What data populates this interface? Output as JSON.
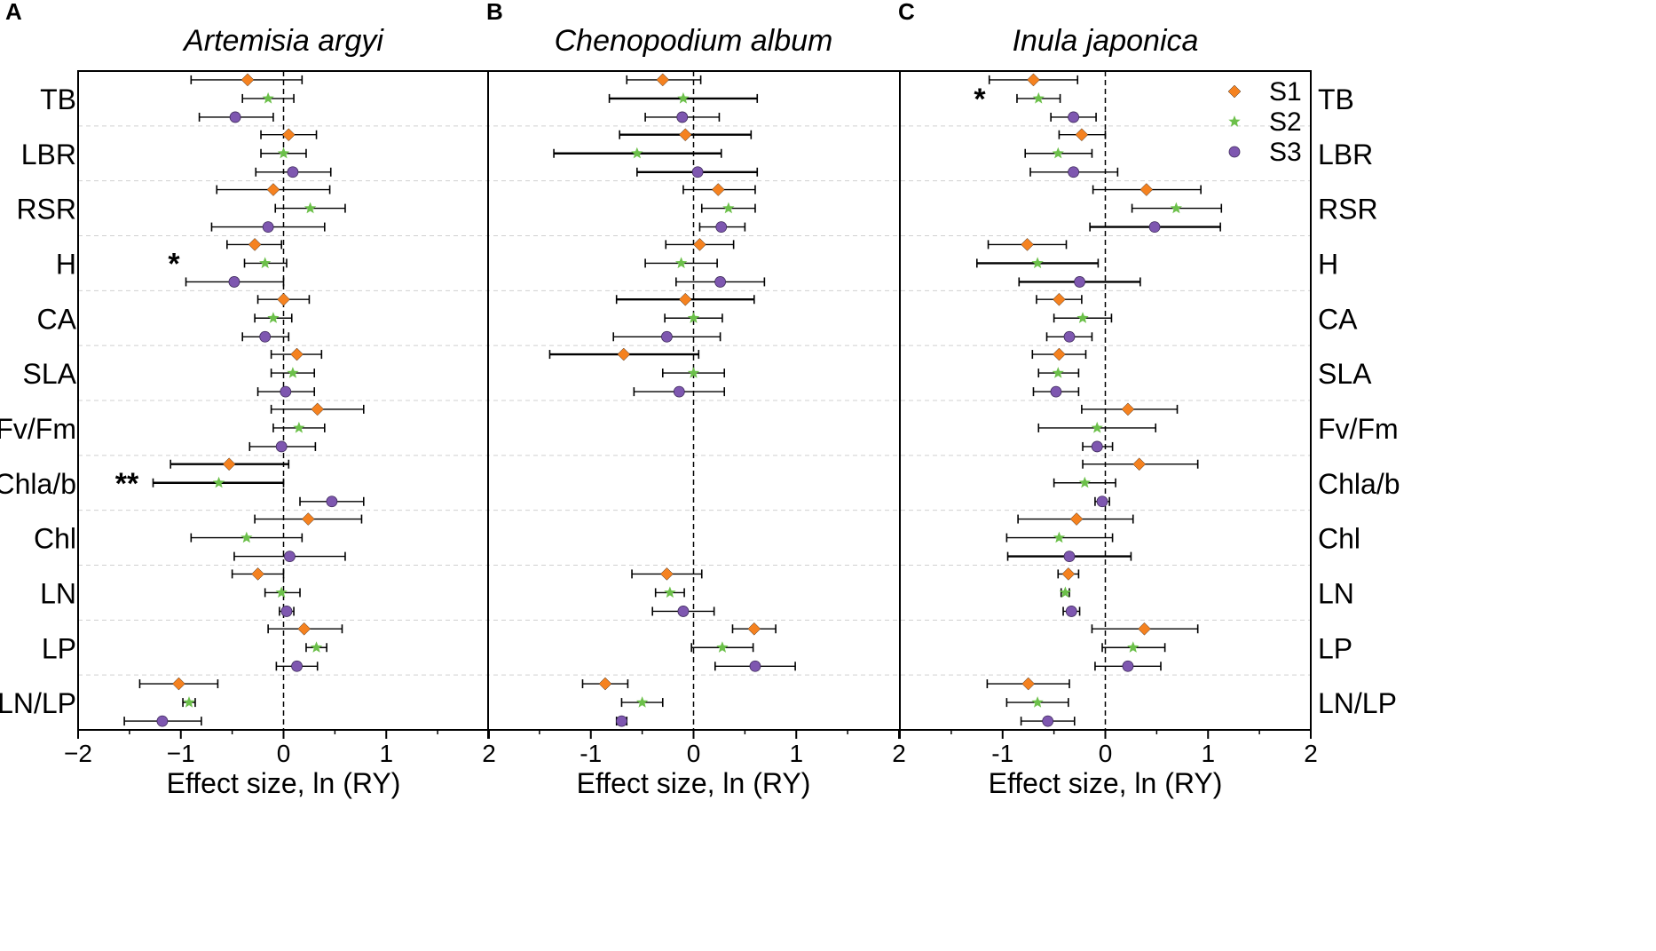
{
  "chart_data": {
    "type": "scatter",
    "subtype": "forest-plot with error bars",
    "xlabel": "Effect size, ln (RY)",
    "xlim": [
      -2,
      2
    ],
    "xticks": [
      -2,
      -1,
      0,
      1,
      2
    ],
    "legend": {
      "placement": "top-right of panel C",
      "entries": [
        {
          "label": "S1",
          "marker": "diamond",
          "color": "#F58220"
        },
        {
          "label": "S2",
          "marker": "star",
          "color": "#6CC04A"
        },
        {
          "label": "S3",
          "marker": "circle",
          "color": "#7E57B0"
        }
      ]
    },
    "traits": [
      "TB",
      "LBR",
      "RSR",
      "H",
      "CA",
      "SLA",
      "Fv/Fm",
      "Chla/b",
      "Chl",
      "LN",
      "LP",
      "LN/LP"
    ],
    "panels": [
      {
        "letter": "A",
        "title": "Artemisia argyi",
        "tick_labels": [
          "−2",
          "−1",
          "0",
          "1",
          "2"
        ],
        "values": {
          "S1": [
            [
              -0.35,
              -0.9,
              0.18
            ],
            [
              0.05,
              -0.22,
              0.32
            ],
            [
              -0.1,
              -0.65,
              0.45
            ],
            [
              -0.28,
              -0.55,
              -0.02
            ],
            [
              0.0,
              -0.25,
              0.25
            ],
            [
              0.13,
              -0.12,
              0.37
            ],
            [
              0.33,
              -0.12,
              0.78
            ],
            [
              -0.53,
              -1.1,
              0.05
            ],
            [
              0.24,
              -0.28,
              0.76
            ],
            [
              -0.25,
              -0.5,
              0.0
            ],
            [
              0.2,
              -0.15,
              0.57
            ],
            [
              -1.02,
              -1.4,
              -0.64
            ]
          ],
          "S2": [
            [
              -0.15,
              -0.4,
              0.1
            ],
            [
              0.0,
              -0.22,
              0.22
            ],
            [
              0.26,
              -0.08,
              0.6
            ],
            [
              -0.18,
              -0.38,
              0.03
            ],
            [
              -0.1,
              -0.28,
              0.08
            ],
            [
              0.09,
              -0.12,
              0.3
            ],
            [
              0.15,
              -0.1,
              0.4
            ],
            [
              -0.63,
              -1.27,
              0.0
            ],
            [
              -0.36,
              -0.9,
              0.18
            ],
            [
              -0.02,
              -0.18,
              0.16
            ],
            [
              0.32,
              0.22,
              0.42
            ],
            [
              -0.92,
              -0.98,
              -0.86
            ]
          ],
          "S3": [
            [
              -0.47,
              -0.82,
              -0.1
            ],
            [
              0.09,
              -0.27,
              0.46
            ],
            [
              -0.15,
              -0.7,
              0.4
            ],
            [
              -0.48,
              -0.95,
              0.0
            ],
            [
              -0.18,
              -0.4,
              0.05
            ],
            [
              0.02,
              -0.25,
              0.3
            ],
            [
              -0.02,
              -0.33,
              0.31
            ],
            [
              0.47,
              0.16,
              0.78
            ],
            [
              0.06,
              -0.48,
              0.6
            ],
            [
              0.03,
              -0.04,
              0.1
            ],
            [
              0.13,
              -0.07,
              0.33
            ],
            [
              -1.18,
              -1.55,
              -0.8
            ]
          ]
        },
        "significance": [
          {
            "trait": "H",
            "mark": "*"
          },
          {
            "trait": "Chla/b",
            "mark": "**"
          }
        ]
      },
      {
        "letter": "B",
        "title": "Chenopodium album",
        "tick_labels": [
          "-1",
          "0",
          "1",
          "2"
        ],
        "values": {
          "S1": [
            [
              -0.3,
              -0.65,
              0.07
            ],
            [
              -0.08,
              -0.72,
              0.56
            ],
            [
              0.24,
              -0.1,
              0.6
            ],
            [
              0.06,
              -0.27,
              0.39
            ],
            [
              -0.08,
              -0.75,
              0.59
            ],
            [
              -0.68,
              -1.4,
              0.05
            ],
            null,
            null,
            null,
            [
              -0.26,
              -0.6,
              0.08
            ],
            [
              0.59,
              0.38,
              0.8
            ],
            [
              -0.86,
              -1.08,
              -0.64
            ]
          ],
          "S2": [
            [
              -0.1,
              -0.82,
              0.62
            ],
            [
              -0.55,
              -1.36,
              0.27
            ],
            [
              0.34,
              0.08,
              0.6
            ],
            [
              -0.12,
              -0.47,
              0.23
            ],
            [
              0.0,
              -0.28,
              0.28
            ],
            [
              0.0,
              -0.3,
              0.3
            ],
            null,
            null,
            null,
            [
              -0.23,
              -0.37,
              -0.09
            ],
            [
              0.28,
              -0.02,
              0.58
            ],
            [
              -0.5,
              -0.7,
              -0.3
            ]
          ],
          "S3": [
            [
              -0.11,
              -0.47,
              0.25
            ],
            [
              0.04,
              -0.55,
              0.62
            ],
            [
              0.27,
              0.06,
              0.5
            ],
            [
              0.26,
              -0.17,
              0.69
            ],
            [
              -0.26,
              -0.78,
              0.26
            ],
            [
              -0.14,
              -0.58,
              0.3
            ],
            null,
            null,
            null,
            [
              -0.1,
              -0.4,
              0.2
            ],
            [
              0.6,
              0.21,
              0.99
            ],
            [
              -0.7,
              -0.75,
              -0.65
            ]
          ]
        },
        "significance": []
      },
      {
        "letter": "C",
        "title": "Inula japonica",
        "tick_labels": [
          "-1",
          "0",
          "1",
          "2"
        ],
        "values": {
          "S1": [
            [
              -0.7,
              -1.13,
              -0.27
            ],
            [
              -0.23,
              -0.45,
              0.0
            ],
            [
              0.4,
              -0.12,
              0.93
            ],
            [
              -0.76,
              -1.14,
              -0.38
            ],
            [
              -0.45,
              -0.67,
              -0.23
            ],
            [
              -0.45,
              -0.71,
              -0.19
            ],
            [
              0.22,
              -0.23,
              0.7
            ],
            [
              0.33,
              -0.22,
              0.9
            ],
            [
              -0.28,
              -0.85,
              0.27
            ],
            [
              -0.36,
              -0.46,
              -0.26
            ],
            [
              0.38,
              -0.13,
              0.9
            ],
            [
              -0.75,
              -1.15,
              -0.35
            ]
          ],
          "S2": [
            [
              -0.65,
              -0.86,
              -0.44
            ],
            [
              -0.46,
              -0.78,
              -0.13
            ],
            [
              0.69,
              0.26,
              1.13
            ],
            [
              -0.66,
              -1.25,
              -0.07
            ],
            [
              -0.22,
              -0.5,
              0.06
            ],
            [
              -0.46,
              -0.65,
              -0.26
            ],
            [
              -0.08,
              -0.65,
              0.49
            ],
            [
              -0.2,
              -0.5,
              0.1
            ],
            [
              -0.45,
              -0.96,
              0.07
            ],
            [
              -0.39,
              -0.43,
              -0.35
            ],
            [
              0.27,
              -0.03,
              0.58
            ],
            [
              -0.66,
              -0.96,
              -0.36
            ]
          ],
          "S3": [
            [
              -0.31,
              -0.53,
              -0.09
            ],
            [
              -0.31,
              -0.73,
              0.12
            ],
            [
              0.48,
              -0.15,
              1.12
            ],
            [
              -0.25,
              -0.84,
              0.34
            ],
            [
              -0.35,
              -0.57,
              -0.13
            ],
            [
              -0.48,
              -0.7,
              -0.26
            ],
            [
              -0.08,
              -0.22,
              0.07
            ],
            [
              -0.03,
              -0.1,
              0.04
            ],
            [
              -0.35,
              -0.95,
              0.25
            ],
            [
              -0.33,
              -0.41,
              -0.25
            ],
            [
              0.22,
              -0.1,
              0.54
            ],
            [
              -0.56,
              -0.82,
              -0.3
            ]
          ]
        },
        "significance": [
          {
            "trait": "TB",
            "mark": "*"
          }
        ]
      }
    ]
  }
}
